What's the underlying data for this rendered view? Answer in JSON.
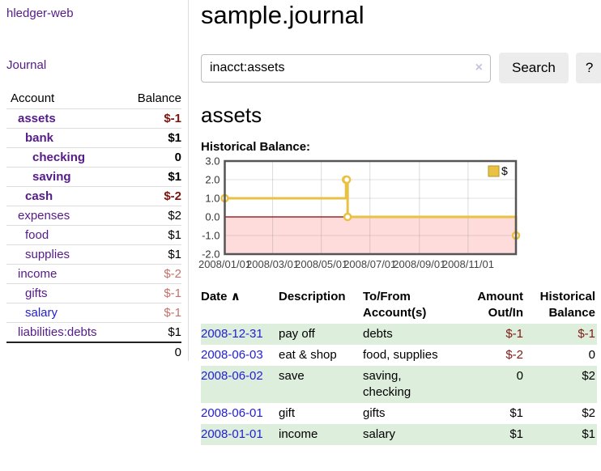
{
  "colors": {
    "link_purple": "#551a8b",
    "link_blue": "#2420d6",
    "negative_strong": "#7e120d",
    "negative_soft": "#c4706c",
    "row_highlight_green": "#ddeedd",
    "chart_line_gold": "#e9c143",
    "chart_negative_fill": "#ffdcdc",
    "chart_zero_line": "#8b0000",
    "chart_frame": "#555555"
  },
  "sidebar": {
    "app_title": "hledger-web",
    "journal_link": "Journal",
    "accounts": {
      "account_header": "Account",
      "balance_header": "Balance",
      "rows": [
        {
          "label": "assets",
          "balance": "$-1",
          "depth": 1,
          "bold": true,
          "neg": "strong"
        },
        {
          "label": "bank",
          "balance": "$1",
          "depth": 2,
          "bold": true
        },
        {
          "label": "checking",
          "balance": "0",
          "depth": 3,
          "bold": true
        },
        {
          "label": "saving",
          "balance": "$1",
          "depth": 3,
          "bold": true
        },
        {
          "label": "cash",
          "balance": "$-2",
          "depth": 2,
          "bold": true,
          "neg": "strong"
        },
        {
          "label": "expenses",
          "balance": "$2",
          "depth": 1
        },
        {
          "label": "food",
          "balance": "$1",
          "depth": 2
        },
        {
          "label": "supplies",
          "balance": "$1",
          "depth": 2
        },
        {
          "label": "income",
          "balance": "$-2",
          "depth": 1,
          "neg": "soft"
        },
        {
          "label": "gifts",
          "balance": "$-1",
          "depth": 2,
          "neg": "soft"
        },
        {
          "label": "salary",
          "balance": "$-1",
          "depth": 2,
          "neg": "soft",
          "blue": true
        },
        {
          "label": "liabilities:debts",
          "balance": "$1",
          "depth": 1
        }
      ],
      "total": "0"
    }
  },
  "main": {
    "title": "sample.journal",
    "search": {
      "value": "inacct:assets",
      "clear_icon": "×",
      "button_label": "Search",
      "help_label": "?"
    },
    "account_heading": "assets",
    "chart_label": "Historical Balance:",
    "register": {
      "headers": {
        "date": "Date",
        "sort_icon": "∧",
        "description": "Description",
        "tofrom": "To/From Account(s)",
        "amount": "Amount Out/In",
        "balance": "Historical Balance"
      },
      "rows": [
        {
          "date": "2008-12-31",
          "description": "pay off",
          "tofrom": "debts",
          "amount": "$-1",
          "balance": "$-1",
          "amount_neg": true,
          "balance_neg": true,
          "highlight": true
        },
        {
          "date": "2008-06-03",
          "description": "eat & shop",
          "tofrom": "food, supplies",
          "amount": "$-2",
          "balance": "0",
          "amount_neg": true
        },
        {
          "date": "2008-06-02",
          "description": "save",
          "tofrom": "saving, checking",
          "amount": "0",
          "balance": "$2",
          "highlight": true
        },
        {
          "date": "2008-06-01",
          "description": "gift",
          "tofrom": "gifts",
          "amount": "$1",
          "balance": "$2"
        },
        {
          "date": "2008-01-01",
          "description": "income",
          "tofrom": "salary",
          "amount": "$1",
          "balance": "$1",
          "highlight": true
        }
      ]
    }
  },
  "chart_data": {
    "type": "line",
    "title": "Historical Balance:",
    "step": true,
    "series": [
      {
        "name": "$",
        "points": [
          [
            "2008-01-01",
            1
          ],
          [
            "2008-06-01",
            2
          ],
          [
            "2008-06-02",
            2
          ],
          [
            "2008-06-03",
            0
          ],
          [
            "2008-12-31",
            -1
          ]
        ]
      }
    ],
    "xlim": [
      "2008-01-01",
      "2008-12-31"
    ],
    "ylim": [
      -2,
      3
    ],
    "x_ticks": [
      "2008/01/01",
      "2008/03/01",
      "2008/05/01",
      "2008/07/01",
      "2008/09/01",
      "2008/11/01"
    ],
    "y_ticks": [
      3.0,
      2.0,
      1.0,
      0.0,
      -1.0,
      -2.0
    ],
    "grid": true,
    "legend_position": "top-right",
    "negative_region_shaded": true
  }
}
